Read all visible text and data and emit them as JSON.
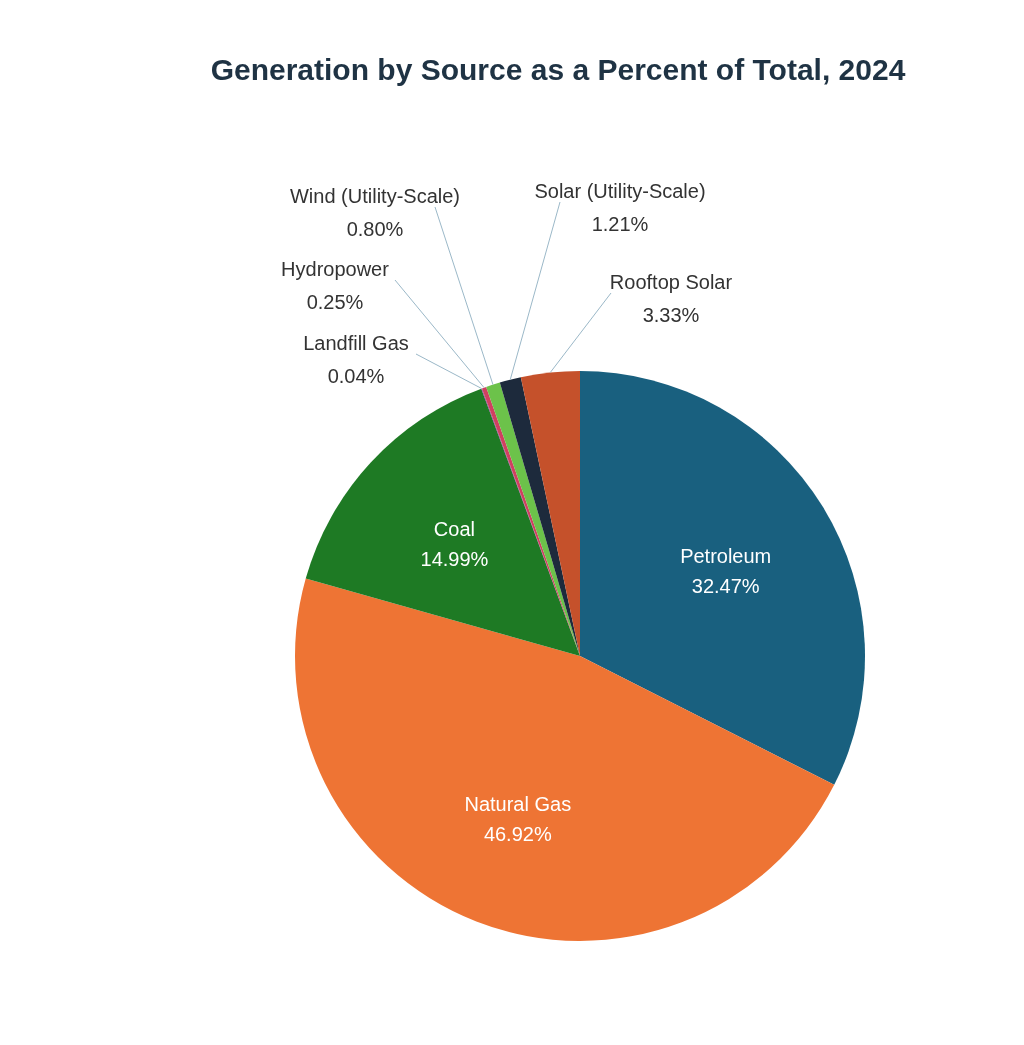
{
  "chart_data": {
    "type": "pie",
    "title": "Generation by Source as a Percent of Total, 2024",
    "categories": [
      "Petroleum",
      "Natural Gas",
      "Coal",
      "Landfill Gas",
      "Hydropower",
      "Wind (Utility-Scale)",
      "Solar (Utility-Scale)",
      "Rooftop Solar"
    ],
    "values": [
      32.47,
      46.92,
      14.99,
      0.04,
      0.25,
      0.8,
      1.21,
      3.33
    ],
    "value_labels": [
      "32.47%",
      "46.92%",
      "14.99%",
      "0.04%",
      "0.25%",
      "0.80%",
      "1.21%",
      "3.33%"
    ],
    "colors": [
      "#19607f",
      "#ee7434",
      "#1e7a24",
      "#8a3a9a",
      "#d04060",
      "#6cc24a",
      "#1d2a3c",
      "#c5512b"
    ]
  }
}
